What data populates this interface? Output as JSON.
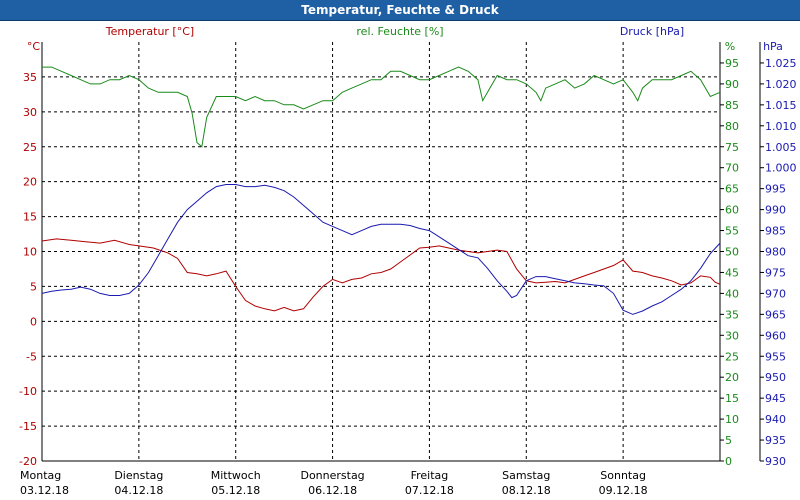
{
  "title": "Temperatur, Feuchte & Druck",
  "legend": {
    "temp": "Temperatur [°C]",
    "hum": "rel. Feuchte [%]",
    "press": "Druck [hPa]"
  },
  "units": {
    "temp": "°C",
    "hum": "%",
    "press": "hPa"
  },
  "colors": {
    "temp": "#b00000",
    "hum": "#1a8a1a",
    "press": "#1a1ab0",
    "grid": "#000000",
    "titlebar": "#1f5fa3"
  },
  "chart_data": {
    "type": "line",
    "title": "Temperatur, Feuchte & Druck",
    "grid": true,
    "x_labels": [
      {
        "day": "Montag",
        "date": "03.12.18",
        "x": 0
      },
      {
        "day": "Dienstag",
        "date": "04.12.18",
        "x": 1
      },
      {
        "day": "Mittwoch",
        "date": "05.12.18",
        "x": 2
      },
      {
        "day": "Donnerstag",
        "date": "06.12.18",
        "x": 3
      },
      {
        "day": "Freitag",
        "date": "07.12.18",
        "x": 4
      },
      {
        "day": "Samstag",
        "date": "08.12.18",
        "x": 5
      },
      {
        "day": "Sonntag",
        "date": "09.12.18",
        "x": 6
      }
    ],
    "xlim": [
      0,
      7
    ],
    "axes": {
      "temp": {
        "label": "Temperatur [°C]",
        "ylim": [
          -20,
          40
        ],
        "ticks": [
          -20,
          -15,
          -10,
          -5,
          0,
          5,
          10,
          15,
          20,
          25,
          30,
          35
        ]
      },
      "hum": {
        "label": "rel. Feuchte [%]",
        "ylim": [
          0,
          100
        ],
        "ticks": [
          0,
          5,
          10,
          15,
          20,
          25,
          30,
          35,
          40,
          45,
          50,
          55,
          60,
          65,
          70,
          75,
          80,
          85,
          90,
          95
        ]
      },
      "press": {
        "label": "Druck [hPa]",
        "ylim": [
          930,
          1030
        ],
        "ticks": [
          "930",
          "935",
          "940",
          "945",
          "950",
          "955",
          "960",
          "965",
          "970",
          "975",
          "980",
          "985",
          "990",
          "995",
          "1.000",
          "1.005",
          "1.010",
          "1.015",
          "1.020",
          "1.025"
        ]
      }
    },
    "series": [
      {
        "name": "Temperatur [°C]",
        "axis": "temp",
        "points": [
          [
            0,
            11.5
          ],
          [
            0.15,
            11.8
          ],
          [
            0.3,
            11.6
          ],
          [
            0.45,
            11.4
          ],
          [
            0.6,
            11.2
          ],
          [
            0.75,
            11.6
          ],
          [
            0.9,
            11.0
          ],
          [
            1.0,
            10.8
          ],
          [
            1.15,
            10.5
          ],
          [
            1.3,
            9.8
          ],
          [
            1.4,
            9.0
          ],
          [
            1.5,
            7.0
          ],
          [
            1.6,
            6.8
          ],
          [
            1.7,
            6.5
          ],
          [
            1.8,
            6.8
          ],
          [
            1.9,
            7.2
          ],
          [
            2.0,
            5.0
          ],
          [
            2.1,
            3.0
          ],
          [
            2.2,
            2.2
          ],
          [
            2.3,
            1.8
          ],
          [
            2.4,
            1.5
          ],
          [
            2.5,
            2.0
          ],
          [
            2.6,
            1.5
          ],
          [
            2.7,
            1.8
          ],
          [
            2.8,
            3.5
          ],
          [
            2.9,
            5.0
          ],
          [
            3.0,
            6.0
          ],
          [
            3.1,
            5.5
          ],
          [
            3.2,
            6.0
          ],
          [
            3.3,
            6.2
          ],
          [
            3.4,
            6.8
          ],
          [
            3.5,
            7.0
          ],
          [
            3.6,
            7.5
          ],
          [
            3.7,
            8.5
          ],
          [
            3.8,
            9.5
          ],
          [
            3.9,
            10.5
          ],
          [
            4.0,
            10.6
          ],
          [
            4.1,
            10.8
          ],
          [
            4.2,
            10.5
          ],
          [
            4.3,
            10.2
          ],
          [
            4.4,
            10.0
          ],
          [
            4.5,
            9.8
          ],
          [
            4.6,
            10.0
          ],
          [
            4.7,
            10.2
          ],
          [
            4.8,
            10.0
          ],
          [
            4.9,
            7.5
          ],
          [
            5.0,
            5.8
          ],
          [
            5.1,
            5.5
          ],
          [
            5.2,
            5.6
          ],
          [
            5.3,
            5.7
          ],
          [
            5.4,
            5.5
          ],
          [
            5.5,
            6.0
          ],
          [
            5.6,
            6.5
          ],
          [
            5.7,
            7.0
          ],
          [
            5.8,
            7.5
          ],
          [
            5.9,
            8.0
          ],
          [
            6.0,
            8.8
          ],
          [
            6.1,
            7.2
          ],
          [
            6.2,
            7.0
          ],
          [
            6.3,
            6.5
          ],
          [
            6.4,
            6.2
          ],
          [
            6.5,
            5.8
          ],
          [
            6.6,
            5.2
          ],
          [
            6.7,
            5.5
          ],
          [
            6.8,
            6.5
          ],
          [
            6.9,
            6.3
          ],
          [
            6.95,
            5.6
          ],
          [
            7.0,
            5.3
          ]
        ]
      },
      {
        "name": "rel. Feuchte [%]",
        "axis": "hum",
        "points": [
          [
            0,
            94
          ],
          [
            0.1,
            94
          ],
          [
            0.2,
            93
          ],
          [
            0.3,
            92
          ],
          [
            0.4,
            91
          ],
          [
            0.5,
            90
          ],
          [
            0.6,
            90
          ],
          [
            0.7,
            91
          ],
          [
            0.8,
            91
          ],
          [
            0.9,
            92
          ],
          [
            1.0,
            91
          ],
          [
            1.1,
            89
          ],
          [
            1.2,
            88
          ],
          [
            1.3,
            88
          ],
          [
            1.4,
            88
          ],
          [
            1.5,
            87
          ],
          [
            1.55,
            83
          ],
          [
            1.6,
            76
          ],
          [
            1.65,
            75
          ],
          [
            1.7,
            82
          ],
          [
            1.8,
            87
          ],
          [
            1.9,
            87
          ],
          [
            2.0,
            87
          ],
          [
            2.1,
            86
          ],
          [
            2.2,
            87
          ],
          [
            2.3,
            86
          ],
          [
            2.4,
            86
          ],
          [
            2.5,
            85
          ],
          [
            2.6,
            85
          ],
          [
            2.7,
            84
          ],
          [
            2.8,
            85
          ],
          [
            2.9,
            86
          ],
          [
            3.0,
            86
          ],
          [
            3.1,
            88
          ],
          [
            3.2,
            89
          ],
          [
            3.3,
            90
          ],
          [
            3.4,
            91
          ],
          [
            3.5,
            91
          ],
          [
            3.6,
            93
          ],
          [
            3.7,
            93
          ],
          [
            3.8,
            92
          ],
          [
            3.9,
            91
          ],
          [
            4.0,
            91
          ],
          [
            4.1,
            92
          ],
          [
            4.2,
            93
          ],
          [
            4.3,
            94
          ],
          [
            4.4,
            93
          ],
          [
            4.5,
            91
          ],
          [
            4.55,
            86
          ],
          [
            4.6,
            88
          ],
          [
            4.7,
            92
          ],
          [
            4.8,
            91
          ],
          [
            4.9,
            91
          ],
          [
            5.0,
            90
          ],
          [
            5.1,
            88
          ],
          [
            5.15,
            86
          ],
          [
            5.2,
            89
          ],
          [
            5.3,
            90
          ],
          [
            5.4,
            91
          ],
          [
            5.5,
            89
          ],
          [
            5.6,
            90
          ],
          [
            5.7,
            92
          ],
          [
            5.8,
            91
          ],
          [
            5.9,
            90
          ],
          [
            6.0,
            91
          ],
          [
            6.1,
            88
          ],
          [
            6.15,
            86
          ],
          [
            6.2,
            89
          ],
          [
            6.3,
            91
          ],
          [
            6.4,
            91
          ],
          [
            6.5,
            91
          ],
          [
            6.6,
            92
          ],
          [
            6.7,
            93
          ],
          [
            6.8,
            91
          ],
          [
            6.9,
            87
          ],
          [
            7.0,
            88
          ]
        ]
      },
      {
        "name": "Druck [hPa]",
        "axis": "press",
        "points": [
          [
            0,
            970
          ],
          [
            0.1,
            970.5
          ],
          [
            0.2,
            970.8
          ],
          [
            0.3,
            971
          ],
          [
            0.4,
            971.5
          ],
          [
            0.5,
            971
          ],
          [
            0.6,
            970
          ],
          [
            0.7,
            969.5
          ],
          [
            0.8,
            969.5
          ],
          [
            0.9,
            970
          ],
          [
            1.0,
            972
          ],
          [
            1.1,
            975
          ],
          [
            1.2,
            979
          ],
          [
            1.3,
            983
          ],
          [
            1.4,
            987
          ],
          [
            1.5,
            990
          ],
          [
            1.6,
            992
          ],
          [
            1.7,
            994
          ],
          [
            1.8,
            995.5
          ],
          [
            1.9,
            996
          ],
          [
            2.0,
            996
          ],
          [
            2.1,
            995.5
          ],
          [
            2.2,
            995.5
          ],
          [
            2.3,
            995.8
          ],
          [
            2.4,
            995.3
          ],
          [
            2.5,
            994.5
          ],
          [
            2.6,
            993
          ],
          [
            2.7,
            991
          ],
          [
            2.8,
            989
          ],
          [
            2.9,
            987
          ],
          [
            3.0,
            986
          ],
          [
            3.1,
            985
          ],
          [
            3.2,
            984
          ],
          [
            3.3,
            985
          ],
          [
            3.4,
            986
          ],
          [
            3.5,
            986.5
          ],
          [
            3.6,
            986.5
          ],
          [
            3.7,
            986.5
          ],
          [
            3.8,
            986.2
          ],
          [
            3.9,
            985.5
          ],
          [
            4.0,
            985
          ],
          [
            4.1,
            983.5
          ],
          [
            4.2,
            982
          ],
          [
            4.3,
            980.5
          ],
          [
            4.4,
            979
          ],
          [
            4.5,
            978.5
          ],
          [
            4.6,
            976
          ],
          [
            4.7,
            973
          ],
          [
            4.8,
            970.5
          ],
          [
            4.85,
            969
          ],
          [
            4.9,
            969.5
          ],
          [
            5.0,
            973
          ],
          [
            5.1,
            974
          ],
          [
            5.2,
            974
          ],
          [
            5.3,
            973.5
          ],
          [
            5.4,
            973
          ],
          [
            5.5,
            972.5
          ],
          [
            5.6,
            972.3
          ],
          [
            5.7,
            972
          ],
          [
            5.8,
            971.8
          ],
          [
            5.9,
            970
          ],
          [
            6.0,
            966
          ],
          [
            6.1,
            965
          ],
          [
            6.2,
            965.8
          ],
          [
            6.3,
            967
          ],
          [
            6.4,
            968
          ],
          [
            6.5,
            969.5
          ],
          [
            6.6,
            971
          ],
          [
            6.7,
            973
          ],
          [
            6.8,
            976
          ],
          [
            6.9,
            979.5
          ],
          [
            7.0,
            982
          ]
        ]
      }
    ]
  }
}
